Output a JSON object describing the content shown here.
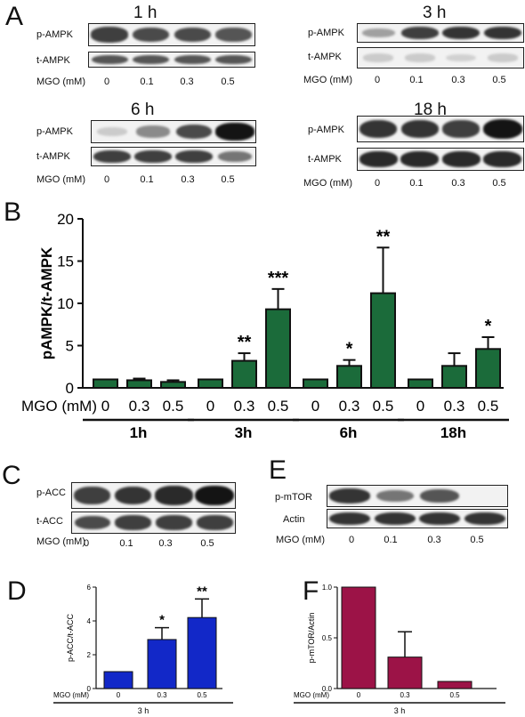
{
  "panel_letters": {
    "a": "A",
    "b": "B",
    "c": "C",
    "d": "D",
    "e": "E",
    "f": "F"
  },
  "blots": {
    "t1h": {
      "title": "1 h",
      "row1": "p-AMPK",
      "row2": "t-AMPK",
      "mgo": "MGO (mM)",
      "lanes": [
        "0",
        "0.1",
        "0.3",
        "0.5"
      ],
      "p_levels": [
        0.8,
        0.75,
        0.75,
        0.7
      ],
      "t_levels": [
        0.7,
        0.7,
        0.7,
        0.7
      ]
    },
    "t3h": {
      "title": "3 h",
      "row1": "p-AMPK",
      "row2": "t-AMPK",
      "mgo": "MGO (mM)",
      "lanes": [
        "0",
        "0.1",
        "0.3",
        "0.5"
      ],
      "p_levels": [
        0.35,
        0.8,
        0.85,
        0.85
      ],
      "t_levels": [
        0.15,
        0.15,
        0.12,
        0.15
      ]
    },
    "t6h": {
      "title": "6 h",
      "row1": "p-AMPK",
      "row2": "t-AMPK",
      "mgo": "MGO (mM)",
      "lanes": [
        "0",
        "0.1",
        "0.3",
        "0.5"
      ],
      "p_levels": [
        0.15,
        0.45,
        0.75,
        1.0
      ],
      "t_levels": [
        0.8,
        0.8,
        0.8,
        0.55
      ]
    },
    "t18h": {
      "title": "18 h",
      "row1": "p-AMPK",
      "row2": "t-AMPK",
      "mgo": "MGO (mM)",
      "lanes": [
        "0",
        "0.1",
        "0.3",
        "0.5"
      ],
      "p_levels": [
        0.85,
        0.85,
        0.8,
        1.0
      ],
      "t_levels": [
        0.9,
        0.9,
        0.9,
        0.9
      ]
    },
    "acc": {
      "row1": "p-ACC",
      "row2": "t-ACC",
      "mgo": "MGO (mM)",
      "lanes": [
        "0",
        "0.1",
        "0.3",
        "0.5"
      ],
      "p_levels": [
        0.8,
        0.85,
        0.9,
        1.0
      ],
      "t_levels": [
        0.75,
        0.8,
        0.8,
        0.8
      ]
    },
    "mtor": {
      "row1": "p-mTOR",
      "row2": "Actin",
      "mgo": "MGO (mM)",
      "lanes": [
        "0",
        "0.1",
        "0.3",
        "0.5"
      ],
      "p_levels": [
        0.85,
        0.55,
        0.7,
        0.0
      ],
      "t_levels": [
        0.85,
        0.85,
        0.85,
        0.85
      ]
    }
  },
  "chart_data": [
    {
      "type": "bar",
      "panel": "B",
      "ylabel": "pAMPK/t-AMPK",
      "xlabel": "MGO (mM)",
      "ylim": [
        0,
        20
      ],
      "yticks": [
        "0",
        "5",
        "10",
        "15",
        "20"
      ],
      "color": "#1b6b3a",
      "groups": [
        {
          "name": "1h",
          "categories": [
            "0",
            "0.3",
            "0.5"
          ],
          "values": [
            1.0,
            0.9,
            0.7
          ],
          "errors": [
            0.0,
            0.2,
            0.2
          ],
          "sig": [
            "",
            "",
            ""
          ]
        },
        {
          "name": "3h",
          "categories": [
            "0",
            "0.3",
            "0.5"
          ],
          "values": [
            1.0,
            3.2,
            9.3
          ],
          "errors": [
            0.0,
            0.9,
            2.4
          ],
          "sig": [
            "",
            "**",
            "***"
          ]
        },
        {
          "name": "6h",
          "categories": [
            "0",
            "0.3",
            "0.5"
          ],
          "values": [
            1.0,
            2.6,
            11.2
          ],
          "errors": [
            0.0,
            0.7,
            5.4
          ],
          "sig": [
            "",
            "*",
            "**"
          ]
        },
        {
          "name": "18h",
          "categories": [
            "0",
            "0.3",
            "0.5"
          ],
          "values": [
            1.0,
            2.6,
            4.6
          ],
          "errors": [
            0.0,
            1.5,
            1.4
          ],
          "sig": [
            "",
            "",
            "*"
          ]
        }
      ]
    },
    {
      "type": "bar",
      "panel": "D",
      "ylabel": "p-ACC/t-ACC",
      "xlabel": "MGO (mM)",
      "ylim": [
        0,
        6
      ],
      "yticks": [
        "0",
        "2",
        "4",
        "6"
      ],
      "color": "#1228c8",
      "group_label": "3 h",
      "categories": [
        "0",
        "0.3",
        "0.5"
      ],
      "values": [
        1.0,
        2.9,
        4.2
      ],
      "errors": [
        0.0,
        0.7,
        1.1
      ],
      "sig": [
        "",
        "*",
        "**"
      ]
    },
    {
      "type": "bar",
      "panel": "F",
      "ylabel": "p-mTOR/Actin",
      "xlabel": "MGO (mM)",
      "ylim": [
        0,
        1.0
      ],
      "yticks": [
        "0.0",
        "0.5",
        "1.0"
      ],
      "color": "#9c1347",
      "group_label": "3 h",
      "categories": [
        "0",
        "0.3",
        "0.5"
      ],
      "values": [
        1.0,
        0.31,
        0.07
      ],
      "errors": [
        0.0,
        0.25,
        0.0
      ],
      "sig": [
        "",
        "",
        ""
      ]
    }
  ]
}
